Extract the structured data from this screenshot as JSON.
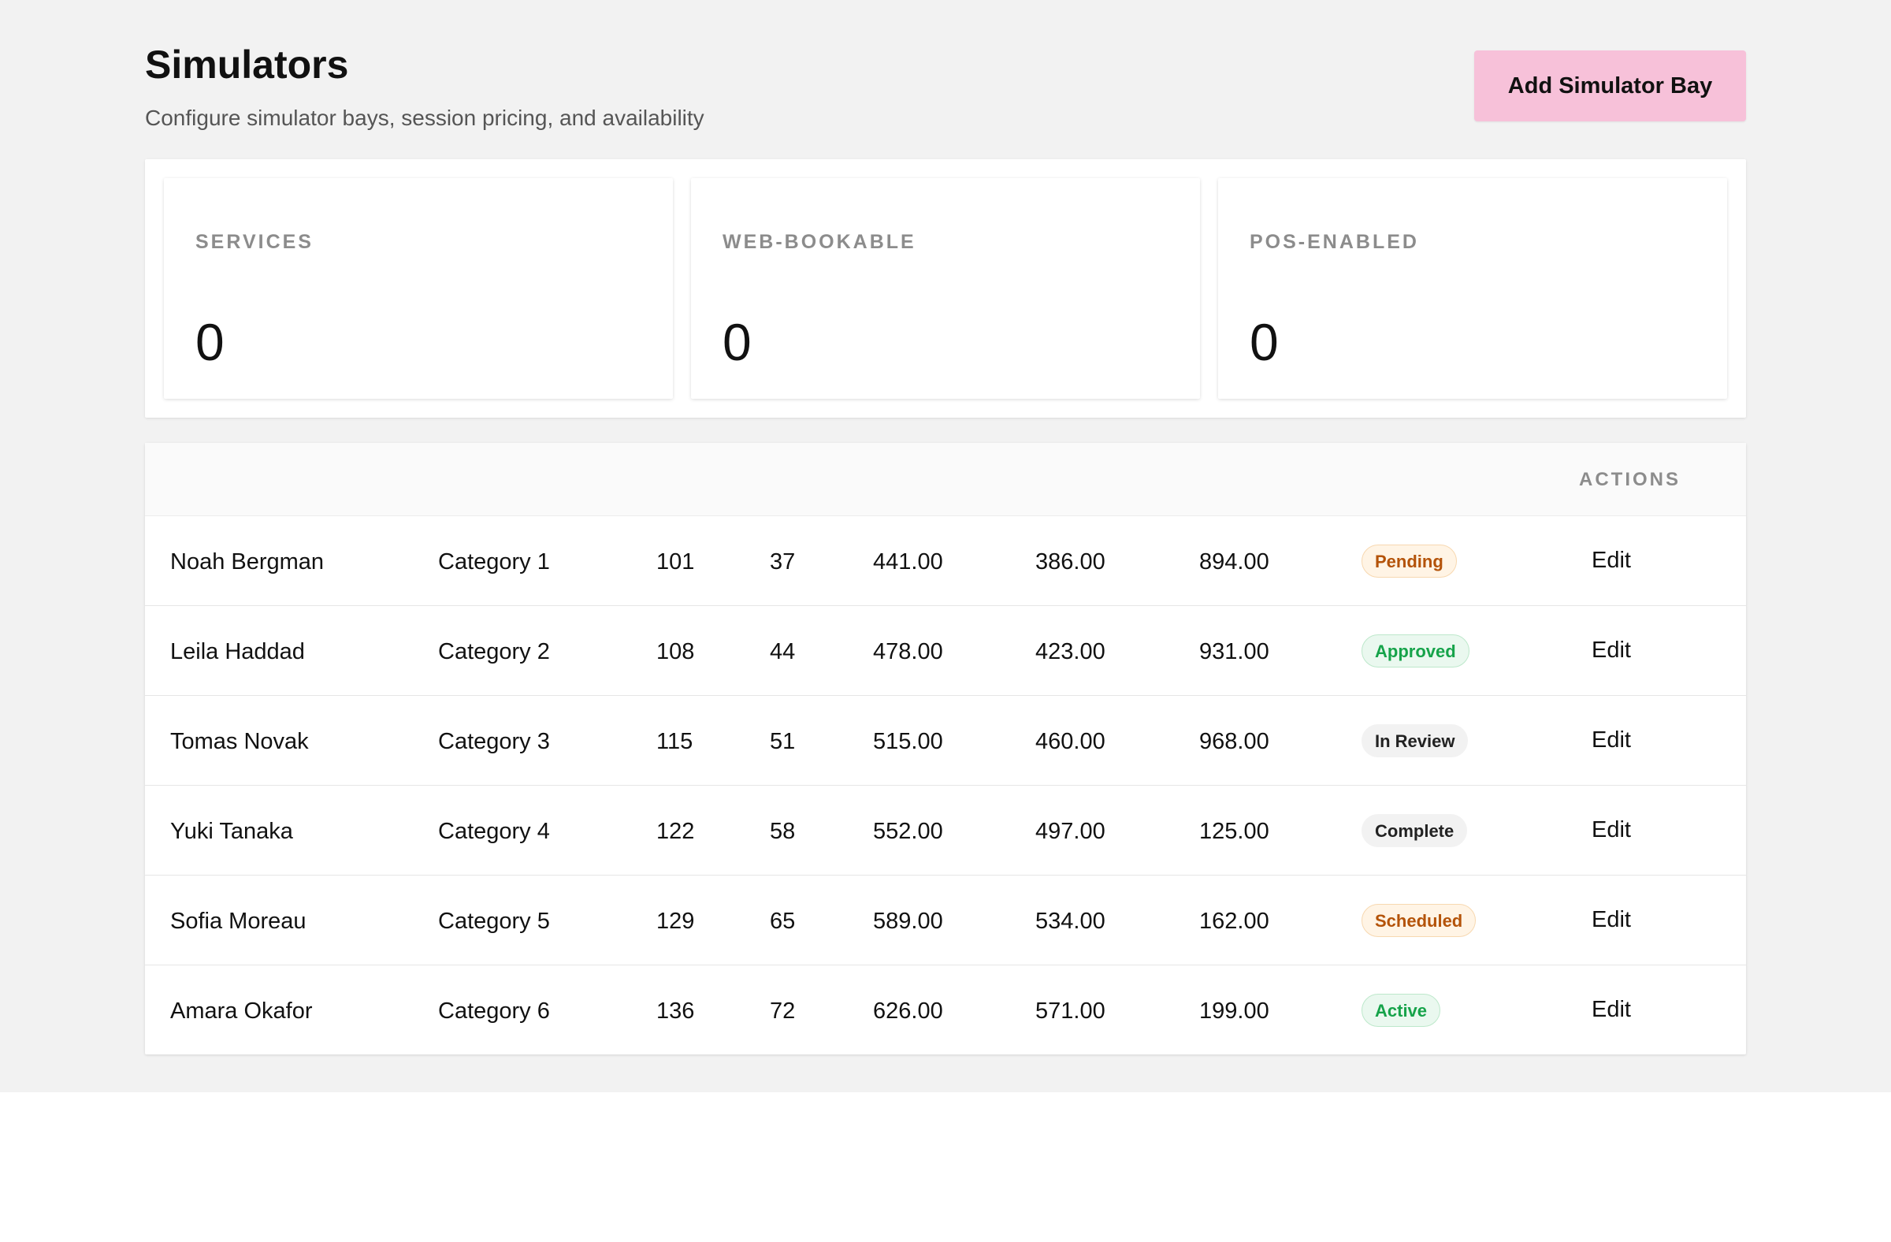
{
  "header": {
    "title": "Simulators",
    "subtitle": "Configure simulator bays, session pricing, and availability",
    "add_button_label": "Add Simulator Bay"
  },
  "stats": [
    {
      "label": "SERVICES",
      "value": "0"
    },
    {
      "label": "WEB-BOOKABLE",
      "value": "0"
    },
    {
      "label": "POS-ENABLED",
      "value": "0"
    }
  ],
  "table": {
    "actions_header": "ACTIONS",
    "rows": [
      {
        "name": "Noah Bergman",
        "category": "Category 1",
        "n1": "101",
        "n2": "37",
        "p1": "441.00",
        "p2": "386.00",
        "p3": "894.00",
        "status": "Pending",
        "action": "Edit"
      },
      {
        "name": "Leila Haddad",
        "category": "Category 2",
        "n1": "108",
        "n2": "44",
        "p1": "478.00",
        "p2": "423.00",
        "p3": "931.00",
        "status": "Approved",
        "action": "Edit"
      },
      {
        "name": "Tomas Novak",
        "category": "Category 3",
        "n1": "115",
        "n2": "51",
        "p1": "515.00",
        "p2": "460.00",
        "p3": "968.00",
        "status": "In Review",
        "action": "Edit"
      },
      {
        "name": "Yuki Tanaka",
        "category": "Category 4",
        "n1": "122",
        "n2": "58",
        "p1": "552.00",
        "p2": "497.00",
        "p3": "125.00",
        "status": "Complete",
        "action": "Edit"
      },
      {
        "name": "Sofia Moreau",
        "category": "Category 5",
        "n1": "129",
        "n2": "65",
        "p1": "589.00",
        "p2": "534.00",
        "p3": "162.00",
        "status": "Scheduled",
        "action": "Edit"
      },
      {
        "name": "Amara Okafor",
        "category": "Category 6",
        "n1": "136",
        "n2": "72",
        "p1": "626.00",
        "p2": "571.00",
        "p3": "199.00",
        "status": "Active",
        "action": "Edit"
      }
    ]
  },
  "colors": {
    "accent_button": "#f7c1d9",
    "status_warning": "#b45309",
    "status_success": "#16a34a",
    "status_neutral": "#222222"
  }
}
